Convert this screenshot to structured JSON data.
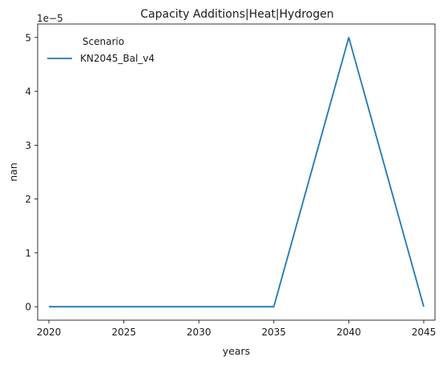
{
  "chart_data": {
    "type": "line",
    "title": "Capacity Additions|Heat|Hydrogen",
    "xlabel": "years",
    "ylabel": "nan",
    "y_multiplier_label": "1e−5",
    "x": [
      2020,
      2025,
      2030,
      2035,
      2040,
      2045
    ],
    "series": [
      {
        "name": "KN2045_Bal_v4",
        "color": "#1f77b4",
        "values": [
          0,
          0,
          0,
          0,
          5e-05,
          0
        ]
      }
    ],
    "xticks": [
      2020,
      2025,
      2030,
      2035,
      2040,
      2045
    ],
    "xtick_labels": [
      "2020",
      "2025",
      "2030",
      "2035",
      "2040",
      "2045"
    ],
    "yticks": [
      0,
      1e-05,
      2e-05,
      3e-05,
      4e-05,
      5e-05
    ],
    "ytick_labels": [
      "0",
      "1",
      "2",
      "3",
      "4",
      "5"
    ],
    "xlim": [
      2019.25,
      2045.75
    ],
    "ylim": [
      -2.5e-06,
      5.25e-05
    ],
    "grid": false,
    "legend": {
      "title": "Scenario",
      "placement": "upper-left"
    }
  }
}
